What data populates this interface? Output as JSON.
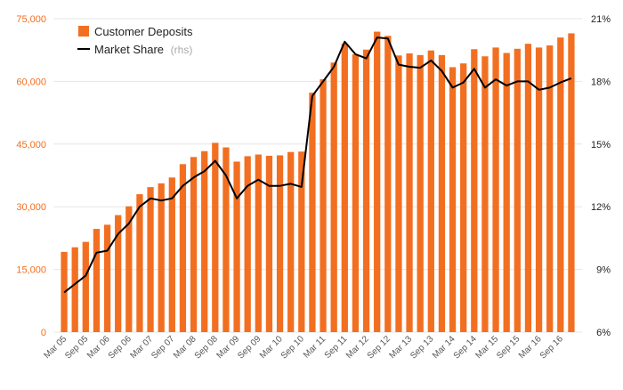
{
  "chart_data": {
    "type": "bar",
    "title": "",
    "colors": {
      "bars": "#f26f21",
      "line": "#000000",
      "left_axis": "#f26f21",
      "right_axis": "#222222",
      "grid": "#e6e6e6"
    },
    "left_axis": {
      "min": 0,
      "max": 75000,
      "ticks": [
        0,
        15000,
        30000,
        45000,
        60000,
        75000
      ],
      "tick_labels": [
        "0",
        "15,000",
        "30,000",
        "45,000",
        "60,000",
        "75,000"
      ]
    },
    "right_axis": {
      "min": 6,
      "max": 21,
      "ticks": [
        6,
        9,
        12,
        15,
        18,
        21
      ],
      "tick_labels": [
        "6%",
        "9%",
        "12%",
        "15%",
        "18%",
        "21%"
      ]
    },
    "x_tick_labels": [
      "Mar 05",
      "Sep 05",
      "Mar 06",
      "Sep 06",
      "Mar 07",
      "Sep 07",
      "Mar 08",
      "Sep 08",
      "Mar 09",
      "Sep 09",
      "Mar 10",
      "Sep 10",
      "Mar 11",
      "Sep 11",
      "Mar 12",
      "Sep 12",
      "Mar 13",
      "Sep 13",
      "Mar 14",
      "Sep 14",
      "Mar 15",
      "Sep 15",
      "Mar 16",
      "Sep 16"
    ],
    "legend": {
      "deposits_label": "Customer Deposits",
      "share_label": "Market Share",
      "share_note": "(rhs)"
    },
    "series": [
      {
        "name": "Customer Deposits",
        "kind": "bar",
        "axis": "left",
        "values": [
          19200,
          20300,
          21600,
          24700,
          25700,
          28000,
          30100,
          33000,
          34700,
          35600,
          37000,
          40200,
          41900,
          43300,
          45300,
          44200,
          40800,
          42100,
          42500,
          42200,
          42300,
          43100,
          43200,
          57300,
          60500,
          64500,
          69000,
          66500,
          67600,
          71900,
          70900,
          66200,
          66700,
          66300,
          67400,
          66300,
          63400,
          64300,
          67700,
          66000,
          68100,
          66800,
          67800,
          69000,
          68100,
          68600,
          70500,
          71500
        ]
      },
      {
        "name": "Market Share",
        "kind": "line",
        "axis": "right",
        "values": [
          7.9,
          8.3,
          8.7,
          9.8,
          9.9,
          10.7,
          11.2,
          12.0,
          12.4,
          12.3,
          12.4,
          13.0,
          13.4,
          13.7,
          14.2,
          13.5,
          12.4,
          13.0,
          13.3,
          13.0,
          13.0,
          13.1,
          12.95,
          17.3,
          18.0,
          18.7,
          19.9,
          19.3,
          19.1,
          20.1,
          20.05,
          18.8,
          18.7,
          18.65,
          19.0,
          18.5,
          17.7,
          17.95,
          18.6,
          17.7,
          18.1,
          17.8,
          18.0,
          18.0,
          17.6,
          17.7,
          17.95,
          18.15
        ]
      }
    ]
  }
}
